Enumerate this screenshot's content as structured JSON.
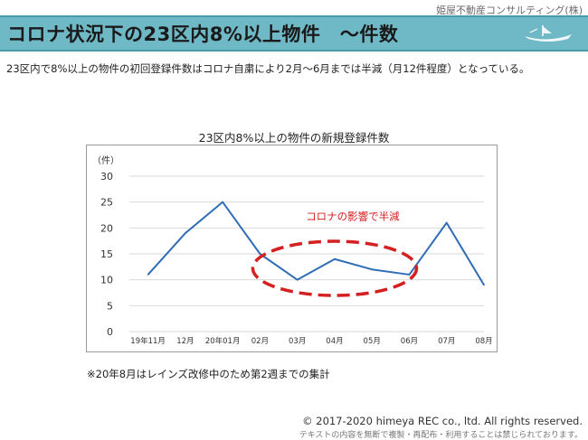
{
  "header": {
    "company": "姫屋不動産コンサルティング(株)",
    "title": "コロナ状況下の23区内8%以上物件　～件数"
  },
  "description": "23区内で8%以上の物件の初回登録件数はコロナ自粛により2月～6月までは半減（月12件程度）となっている。",
  "annotation": "コロナの影響で半減",
  "footnote": "※20年8月はレインズ改修中のため第2週までの集計",
  "copyright": "©  2017-2020 himeya REC co., ltd. All rights reserved.",
  "notice": "テキストの内容を無断で複製・再配布・利用することは禁じられております。",
  "colors": {
    "line": "#2f6db5",
    "highlight": "#d42020",
    "title_band": "#6fb8c6"
  },
  "chart_data": {
    "type": "line",
    "title": "23区内8%以上の物件の新規登録件数",
    "ylabel": "（件）",
    "xlabel": "",
    "categories": [
      "19年11月",
      "12月",
      "20年01月",
      "02月",
      "03月",
      "04月",
      "05月",
      "06月",
      "07月",
      "08月"
    ],
    "values": [
      11,
      19,
      25,
      15,
      10,
      14,
      12,
      11,
      21,
      9
    ],
    "ylim": [
      0,
      30
    ],
    "yticks": [
      0,
      5,
      10,
      15,
      20,
      25,
      30
    ],
    "grid": true,
    "legend": "none"
  }
}
